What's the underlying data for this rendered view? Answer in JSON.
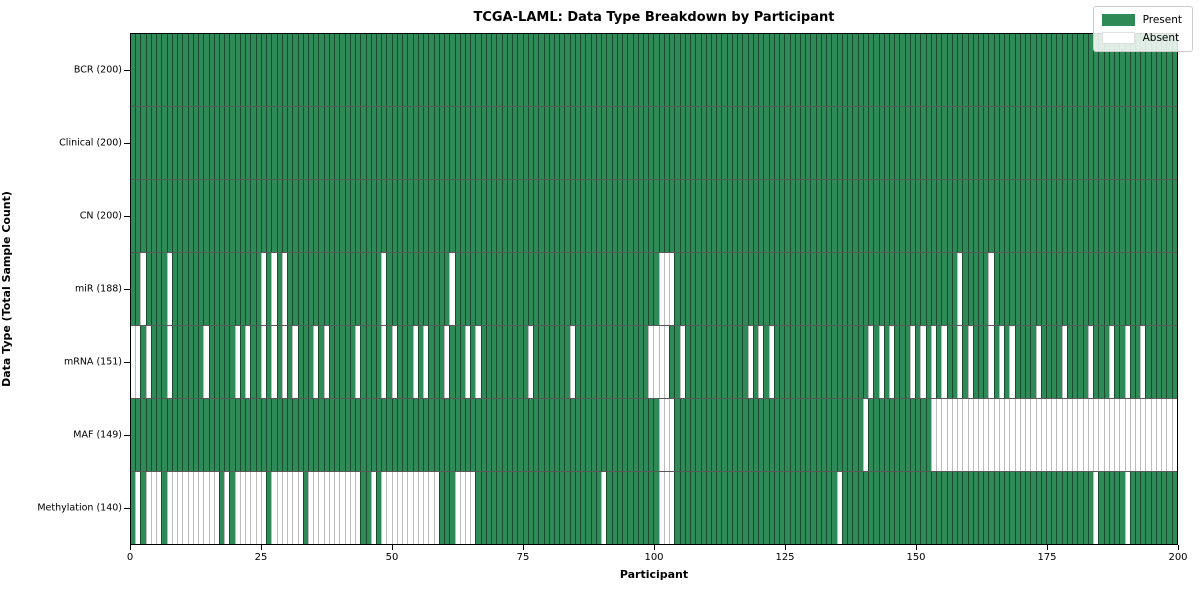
{
  "title": "TCGA-LAML: Data Type Breakdown by Participant",
  "xlabel": "Participant",
  "ylabel": "Data Type (Total Sample Count)",
  "legend": {
    "present_label": "Present",
    "absent_label": "Absent"
  },
  "colors": {
    "present_fill": "#2e8b57",
    "present_edge": "rgba(0,0,0,0.45)",
    "absent_fill": "#ffffff",
    "absent_edge": "#bdbdbd",
    "row_divider": "rgba(0,0,0,0.65)"
  },
  "chart_data": {
    "type": "heatmap",
    "title": "TCGA-LAML: Data Type Breakdown by Participant",
    "xlabel": "Participant",
    "ylabel": "Data Type (Total Sample Count)",
    "x_range": [
      0,
      200
    ],
    "x_ticks": [
      0,
      25,
      50,
      75,
      100,
      125,
      150,
      175,
      200
    ],
    "n_participants": 200,
    "legend_entries": [
      "Present",
      "Absent"
    ],
    "legend_position": "upper right",
    "grid": false,
    "rows": [
      {
        "label": "BCR (200)",
        "present_count": 200,
        "absent_participants": []
      },
      {
        "label": "Clinical (200)",
        "present_count": 200,
        "absent_participants": []
      },
      {
        "label": "CN (200)",
        "present_count": 200,
        "absent_participants": []
      },
      {
        "label": "miR (188)",
        "present_count": 188,
        "absent_participants": [
          2,
          7,
          25,
          27,
          29,
          48,
          61,
          101,
          102,
          103,
          158,
          164
        ]
      },
      {
        "label": "mRNA (151)",
        "present_count": 151,
        "absent_participants": [
          0,
          1,
          3,
          7,
          14,
          20,
          22,
          25,
          27,
          29,
          31,
          35,
          37,
          43,
          48,
          50,
          54,
          56,
          60,
          64,
          66,
          76,
          84,
          99,
          100,
          101,
          102,
          105,
          118,
          120,
          122,
          141,
          143,
          145,
          149,
          151,
          153,
          155,
          158,
          160,
          164,
          166,
          168,
          173,
          178,
          183,
          187,
          190,
          193
        ]
      },
      {
        "label": "MAF (149)",
        "present_count": 149,
        "absent_participants": [
          101,
          102,
          103,
          140,
          153,
          154,
          155,
          156,
          157,
          158,
          159,
          160,
          161,
          162,
          163,
          164,
          165,
          166,
          167,
          168,
          169,
          170,
          171,
          172,
          173,
          174,
          175,
          176,
          177,
          178,
          179,
          180,
          181,
          182,
          183,
          184,
          185,
          186,
          187,
          188,
          189,
          190,
          191,
          192,
          193,
          194,
          195,
          196,
          197,
          198,
          199
        ]
      },
      {
        "label": "Methylation (140)",
        "present_count": 140,
        "absent_participants": [
          1,
          3,
          4,
          5,
          7,
          8,
          9,
          10,
          11,
          12,
          13,
          14,
          15,
          16,
          18,
          20,
          21,
          22,
          23,
          24,
          25,
          27,
          28,
          29,
          30,
          31,
          32,
          34,
          35,
          36,
          37,
          38,
          39,
          40,
          41,
          42,
          43,
          46,
          48,
          49,
          50,
          51,
          52,
          53,
          54,
          55,
          56,
          57,
          58,
          62,
          63,
          64,
          65,
          90,
          101,
          102,
          103,
          135,
          184,
          190
        ]
      }
    ]
  }
}
